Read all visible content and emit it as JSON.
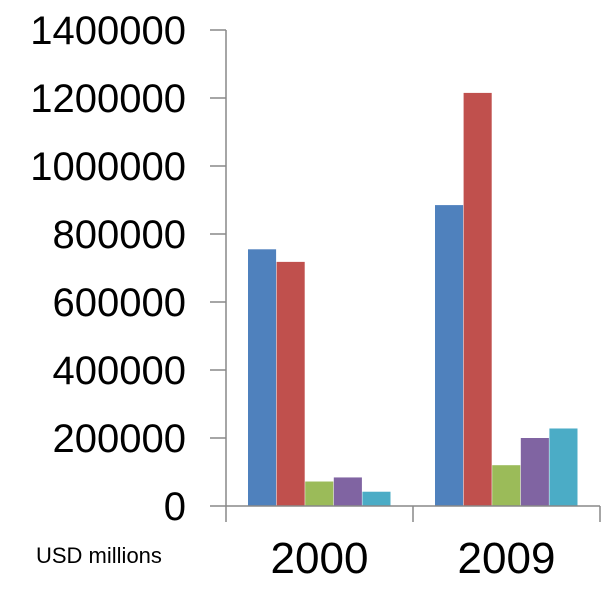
{
  "chart_data": {
    "type": "bar",
    "title": "",
    "xlabel": "",
    "ylabel": "",
    "unit_note": "USD millions",
    "categories": [
      "2000",
      "2009"
    ],
    "ylim": [
      0,
      1400000
    ],
    "yticks": [
      0,
      200000,
      400000,
      600000,
      800000,
      1000000,
      1200000,
      1400000
    ],
    "ytick_labels": [
      "0",
      "200000",
      "400000",
      "600000",
      "800000",
      "1000000",
      "1200000",
      "1400000"
    ],
    "grid": false,
    "legend": "none",
    "series": [
      {
        "color": "#4F81BD",
        "values": [
          755000,
          885000
        ]
      },
      {
        "color": "#C0504D",
        "values": [
          718000,
          1215000
        ]
      },
      {
        "color": "#9BBB59",
        "values": [
          72000,
          120000
        ]
      },
      {
        "color": "#8064A2",
        "values": [
          84000,
          200000
        ]
      },
      {
        "color": "#4BACC6",
        "values": [
          42000,
          228000
        ]
      }
    ]
  }
}
